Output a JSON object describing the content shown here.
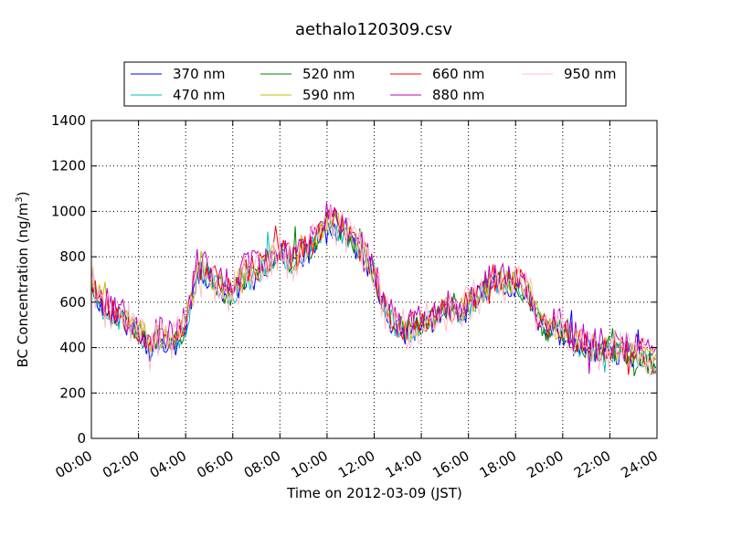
{
  "chart_data": {
    "type": "line",
    "title": "aethalo120309.csv",
    "xlabel": "Time on 2012-03-09 (JST)",
    "ylabel": "BC Concentration (ng/m",
    "ylabel_sup": "3",
    "ylabel_close": ")",
    "xlim": [
      0,
      24
    ],
    "ylim": [
      0,
      1400
    ],
    "x_ticks": [
      0,
      2,
      4,
      6,
      8,
      10,
      12,
      14,
      16,
      18,
      20,
      22,
      24
    ],
    "x_tick_labels": [
      "00:00",
      "02:00",
      "04:00",
      "06:00",
      "08:00",
      "10:00",
      "12:00",
      "14:00",
      "16:00",
      "18:00",
      "20:00",
      "22:00",
      "24:00"
    ],
    "y_ticks": [
      0,
      200,
      400,
      600,
      800,
      1000,
      1200,
      1400
    ],
    "y_tick_labels": [
      "0",
      "200",
      "400",
      "600",
      "800",
      "1000",
      "1200",
      "1400"
    ],
    "grid": true,
    "legend_position": "top-center",
    "x": [
      0,
      0.5,
      1,
      1.5,
      2,
      2.5,
      3,
      3.5,
      4,
      4.5,
      5,
      5.5,
      6,
      6.5,
      7,
      7.5,
      8,
      8.5,
      9,
      9.5,
      10,
      10.5,
      11,
      11.5,
      12,
      12.5,
      13,
      13.5,
      14,
      14.5,
      15,
      15.5,
      16,
      16.5,
      17,
      17.5,
      18,
      18.5,
      19,
      19.5,
      20,
      20.5,
      21,
      21.5,
      22,
      22.5,
      23,
      23.5,
      23.95
    ],
    "base_values": [
      700,
      580,
      540,
      520,
      470,
      420,
      440,
      420,
      500,
      740,
      730,
      660,
      640,
      720,
      740,
      780,
      830,
      780,
      820,
      860,
      960,
      930,
      880,
      820,
      730,
      560,
      490,
      480,
      520,
      530,
      560,
      560,
      580,
      640,
      700,
      680,
      690,
      650,
      520,
      470,
      480,
      420,
      410,
      390,
      400,
      380,
      370,
      350,
      330
    ],
    "series": [
      {
        "name": "370 nm",
        "color": "#0000ff",
        "offset": -15,
        "noise": 55,
        "seed": 11
      },
      {
        "name": "470 nm",
        "color": "#00bfbf",
        "offset": -8,
        "noise": 55,
        "seed": 23
      },
      {
        "name": "520 nm",
        "color": "#008000",
        "offset": -5,
        "noise": 58,
        "seed": 37
      },
      {
        "name": "590 nm",
        "color": "#bfbf00",
        "offset": 5,
        "noise": 60,
        "seed": 41
      },
      {
        "name": "660 nm",
        "color": "#ff0000",
        "offset": 10,
        "noise": 62,
        "seed": 53
      },
      {
        "name": "880 nm",
        "color": "#bf00bf",
        "offset": 25,
        "noise": 75,
        "seed": 67
      },
      {
        "name": "950 nm",
        "color": "#ffc0cb",
        "offset": 0,
        "noise": 95,
        "seed": 79
      }
    ]
  }
}
